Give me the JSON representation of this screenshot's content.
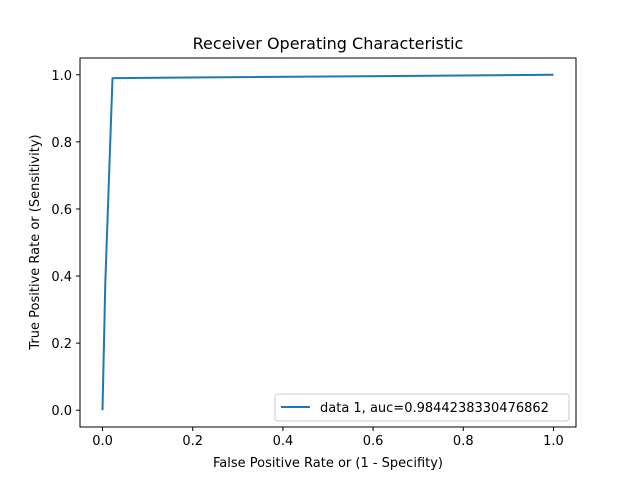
{
  "chart_data": {
    "type": "line",
    "title": "Receiver Operating Characteristic",
    "xlabel": "False Positive Rate or (1 - Specifity)",
    "ylabel": "True Positive Rate or (Sensitivity)",
    "xlim": [
      -0.05,
      1.05
    ],
    "ylim": [
      -0.05,
      1.05
    ],
    "xticks": [
      0.0,
      0.2,
      0.4,
      0.6,
      0.8,
      1.0
    ],
    "xtick_labels": [
      "0.0",
      "0.2",
      "0.4",
      "0.6",
      "0.8",
      "1.0"
    ],
    "yticks": [
      0.0,
      0.2,
      0.4,
      0.6,
      0.8,
      1.0
    ],
    "ytick_labels": [
      "0.0",
      "0.2",
      "0.4",
      "0.6",
      "0.8",
      "1.0"
    ],
    "grid": false,
    "legend_position": "lower-right",
    "series": [
      {
        "name": "data 1, auc=0.9844238330476862",
        "color": "#1f77b4",
        "x": [
          0.0,
          0.006,
          0.022,
          1.0
        ],
        "y": [
          0.0,
          0.38,
          0.99,
          1.0
        ]
      }
    ]
  }
}
